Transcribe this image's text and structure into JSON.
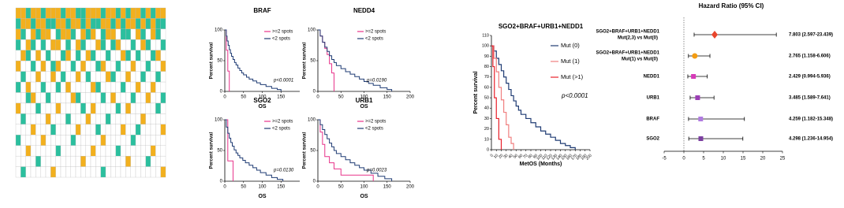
{
  "chart_data": [
    {
      "type": "heatmap",
      "colors": [
        "#ffffff",
        "#2bbf9e",
        "#f2b01e"
      ],
      "values": [
        [
          2,
          2,
          1,
          2,
          2,
          1,
          2,
          2,
          2,
          1,
          2,
          2,
          1,
          1,
          2,
          2,
          2,
          1,
          2,
          2,
          1,
          2,
          1,
          2,
          2,
          1,
          2,
          1,
          2,
          2
        ],
        [
          1,
          2,
          2,
          1,
          2,
          2,
          1,
          1,
          2,
          2,
          1,
          2,
          2,
          1,
          2,
          1,
          1,
          2,
          2,
          1,
          2,
          1,
          2,
          2,
          1,
          2,
          1,
          2,
          1,
          1
        ],
        [
          2,
          1,
          0,
          2,
          1,
          2,
          2,
          0,
          1,
          2,
          2,
          1,
          0,
          2,
          1,
          2,
          0,
          1,
          2,
          2,
          0,
          1,
          1,
          0,
          2,
          1,
          0,
          2,
          1,
          0
        ],
        [
          1,
          0,
          2,
          1,
          0,
          1,
          0,
          2,
          2,
          0,
          1,
          0,
          2,
          1,
          0,
          0,
          2,
          1,
          0,
          1,
          2,
          0,
          0,
          1,
          0,
          2,
          1,
          0,
          0,
          1
        ],
        [
          0,
          2,
          1,
          0,
          2,
          0,
          1,
          0,
          0,
          1,
          2,
          0,
          1,
          0,
          2,
          1,
          0,
          0,
          1,
          0,
          0,
          2,
          1,
          0,
          1,
          0,
          0,
          1,
          2,
          0
        ],
        [
          2,
          0,
          0,
          1,
          0,
          2,
          0,
          1,
          2,
          0,
          0,
          1,
          0,
          2,
          0,
          0,
          1,
          2,
          0,
          0,
          1,
          0,
          0,
          2,
          0,
          0,
          1,
          0,
          0,
          2
        ],
        [
          0,
          1,
          0,
          0,
          2,
          0,
          0,
          2,
          0,
          1,
          0,
          0,
          2,
          0,
          1,
          0,
          0,
          0,
          2,
          1,
          0,
          0,
          2,
          0,
          0,
          1,
          0,
          0,
          1,
          0
        ],
        [
          1,
          0,
          2,
          0,
          0,
          1,
          0,
          0,
          1,
          0,
          2,
          0,
          0,
          0,
          0,
          2,
          1,
          0,
          0,
          0,
          0,
          1,
          0,
          0,
          2,
          0,
          0,
          2,
          0,
          0
        ],
        [
          0,
          0,
          1,
          2,
          0,
          0,
          1,
          0,
          0,
          0,
          0,
          2,
          1,
          0,
          0,
          0,
          0,
          1,
          0,
          2,
          0,
          0,
          0,
          1,
          0,
          0,
          2,
          0,
          0,
          1
        ],
        [
          2,
          0,
          0,
          0,
          1,
          0,
          0,
          0,
          2,
          0,
          0,
          0,
          0,
          1,
          0,
          2,
          0,
          0,
          0,
          0,
          1,
          0,
          2,
          0,
          0,
          0,
          0,
          0,
          1,
          0
        ],
        [
          0,
          1,
          0,
          0,
          0,
          0,
          2,
          0,
          0,
          0,
          1,
          0,
          0,
          0,
          2,
          0,
          0,
          0,
          1,
          0,
          0,
          0,
          0,
          0,
          0,
          2,
          0,
          0,
          0,
          0
        ],
        [
          0,
          0,
          0,
          2,
          0,
          0,
          0,
          1,
          0,
          0,
          0,
          0,
          2,
          0,
          0,
          0,
          1,
          0,
          0,
          0,
          0,
          2,
          0,
          0,
          1,
          0,
          0,
          0,
          0,
          2
        ],
        [
          1,
          0,
          0,
          0,
          0,
          2,
          0,
          0,
          0,
          0,
          0,
          1,
          0,
          0,
          0,
          0,
          0,
          2,
          0,
          0,
          0,
          0,
          0,
          1,
          0,
          0,
          0,
          0,
          0,
          0
        ],
        [
          0,
          0,
          2,
          0,
          0,
          0,
          0,
          0,
          1,
          0,
          0,
          0,
          0,
          0,
          0,
          2,
          0,
          0,
          0,
          0,
          1,
          0,
          0,
          0,
          0,
          0,
          0,
          2,
          0,
          0
        ],
        [
          0,
          0,
          0,
          0,
          1,
          0,
          0,
          0,
          0,
          0,
          0,
          0,
          0,
          2,
          0,
          0,
          0,
          0,
          0,
          0,
          0,
          0,
          2,
          0,
          0,
          0,
          1,
          0,
          0,
          0
        ],
        [
          0,
          1,
          0,
          0,
          0,
          0,
          0,
          2,
          0,
          0,
          0,
          0,
          0,
          0,
          0,
          0,
          0,
          1,
          0,
          0,
          0,
          0,
          0,
          0,
          0,
          0,
          0,
          0,
          0,
          2
        ]
      ]
    },
    {
      "type": "km",
      "title": "BRAF",
      "xlabel": "OS",
      "ylabel": "Percent survival",
      "annotation": "p<0.0001",
      "legend": "upper right",
      "xlim": [
        0,
        200
      ],
      "xticks": [
        0,
        50,
        100,
        150
      ],
      "ylim": [
        0,
        100
      ],
      "yticks": [
        0,
        50,
        100
      ],
      "series": [
        {
          "name": ">=2 spots",
          "color": "#e8338a",
          "x": [
            0,
            4,
            8,
            12
          ],
          "y": [
            100,
            67,
            33,
            0
          ]
        },
        {
          "name": "<2 spots",
          "color": "#1f3b73",
          "x": [
            0,
            4,
            6,
            9,
            12,
            15,
            18,
            22,
            26,
            30,
            35,
            40,
            45,
            50,
            58,
            65,
            75,
            85,
            95,
            110,
            125,
            140,
            150
          ],
          "y": [
            100,
            90,
            82,
            75,
            68,
            62,
            57,
            52,
            47,
            43,
            38,
            34,
            30,
            27,
            23,
            20,
            17,
            14,
            11,
            8,
            5,
            3,
            0
          ]
        }
      ]
    },
    {
      "type": "km",
      "title": "NEDD4",
      "xlabel": "OS",
      "ylabel": "Percent survival",
      "annotation": "p=0.0190",
      "legend": "upper right",
      "xlim": [
        0,
        200
      ],
      "xticks": [
        0,
        50,
        100,
        150,
        200
      ],
      "ylim": [
        0,
        100
      ],
      "yticks": [
        0,
        50,
        100
      ],
      "series": [
        {
          "name": ">=2 spots",
          "color": "#e8338a",
          "x": [
            0,
            5,
            10,
            15,
            20,
            25,
            30,
            35
          ],
          "y": [
            100,
            90,
            80,
            70,
            60,
            45,
            30,
            0
          ]
        },
        {
          "name": "<2 spots",
          "color": "#1f3b73",
          "x": [
            0,
            5,
            10,
            15,
            20,
            25,
            30,
            35,
            40,
            50,
            60,
            70,
            80,
            90,
            100,
            110,
            120,
            135,
            150,
            160
          ],
          "y": [
            100,
            90,
            80,
            72,
            65,
            58,
            52,
            47,
            42,
            37,
            32,
            28,
            24,
            20,
            16,
            13,
            10,
            6,
            3,
            0
          ]
        }
      ]
    },
    {
      "type": "km",
      "title": "SGO2",
      "xlabel": "OS",
      "ylabel": "Percent survival",
      "annotation": "p=0.0130",
      "legend": "upper right",
      "xlim": [
        0,
        200
      ],
      "xticks": [
        0,
        50,
        100,
        150
      ],
      "ylim": [
        0,
        100
      ],
      "yticks": [
        0,
        50,
        100
      ],
      "series": [
        {
          "name": ">=2 spots",
          "color": "#e8338a",
          "x": [
            0,
            8,
            22
          ],
          "y": [
            100,
            33,
            0
          ]
        },
        {
          "name": "<2 spots",
          "color": "#1f3b73",
          "x": [
            0,
            4,
            8,
            12,
            16,
            20,
            25,
            30,
            35,
            40,
            48,
            55,
            65,
            75,
            85,
            95,
            110,
            125,
            140,
            155
          ],
          "y": [
            100,
            88,
            78,
            70,
            63,
            57,
            51,
            46,
            42,
            38,
            34,
            30,
            26,
            22,
            18,
            14,
            10,
            6,
            3,
            0
          ]
        }
      ]
    },
    {
      "type": "km",
      "title": "URB1",
      "xlabel": "OS",
      "ylabel": "Percent survival",
      "annotation": "p=0.0023",
      "legend": "upper right",
      "xlim": [
        0,
        200
      ],
      "xticks": [
        0,
        50,
        100,
        150,
        200
      ],
      "ylim": [
        0,
        100
      ],
      "yticks": [
        0,
        50,
        100
      ],
      "series": [
        {
          "name": ">=2 spots",
          "color": "#e8338a",
          "x": [
            0,
            5,
            10,
            15,
            25,
            35,
            50,
            70,
            120
          ],
          "y": [
            100,
            80,
            60,
            40,
            30,
            20,
            10,
            10,
            0
          ]
        },
        {
          "name": "<2 spots",
          "color": "#1f3b73",
          "x": [
            0,
            5,
            10,
            15,
            20,
            25,
            30,
            35,
            40,
            50,
            60,
            70,
            80,
            90,
            100,
            115,
            130,
            145,
            160
          ],
          "y": [
            100,
            92,
            84,
            76,
            69,
            62,
            56,
            50,
            45,
            40,
            35,
            30,
            26,
            22,
            18,
            13,
            8,
            4,
            0
          ]
        }
      ]
    },
    {
      "type": "km",
      "title": "SGO2+BRAF+URB1+NEDD1",
      "xlabel": "MetOS (Months)",
      "ylabel": "Percent survival",
      "annotation": "p<0.0001",
      "legend": "right",
      "xlim": [
        0,
        200
      ],
      "xticks": [
        0,
        10,
        20,
        30,
        40,
        50,
        60,
        70,
        80,
        90,
        100,
        110,
        120,
        130,
        140,
        150,
        160,
        170,
        180,
        190,
        200
      ],
      "ylim": [
        0,
        110
      ],
      "yticks": [
        0,
        10,
        20,
        30,
        40,
        50,
        60,
        70,
        80,
        90,
        100,
        110
      ],
      "series": [
        {
          "name": "Mut (0)",
          "color": "#1f3b73",
          "x": [
            0,
            5,
            10,
            15,
            20,
            25,
            30,
            35,
            40,
            45,
            50,
            55,
            60,
            70,
            80,
            90,
            100,
            110,
            120,
            130,
            140,
            150,
            160,
            170
          ],
          "y": [
            100,
            95,
            88,
            82,
            76,
            70,
            64,
            58,
            52,
            47,
            42,
            38,
            34,
            30,
            26,
            22,
            18,
            15,
            12,
            9,
            6,
            4,
            2,
            0
          ]
        },
        {
          "name": "Mut (1)",
          "color": "#f07f7f",
          "x": [
            0,
            5,
            10,
            15,
            20,
            25,
            30,
            35,
            40,
            45
          ],
          "y": [
            100,
            88,
            75,
            60,
            48,
            36,
            24,
            12,
            6,
            0
          ]
        },
        {
          "name": "Mut (>1)",
          "color": "#e8202a",
          "x": [
            0,
            3,
            6,
            10,
            15,
            20
          ],
          "y": [
            100,
            80,
            50,
            30,
            10,
            0
          ]
        }
      ]
    },
    {
      "type": "forest",
      "title": "Hazard Ratio (95% CI)",
      "categories": [
        "SGO2+BRAF+URB1+NEDD1",
        "SGO2+BRAF+URB1+NEDD1",
        "NEDD1",
        "URB1",
        "BRAF",
        "SGO2"
      ],
      "sublabels": [
        "Mut(2,3) vs Mut(0)",
        "Mut(1) vs Mut(0)",
        null,
        null,
        null,
        null
      ],
      "values": [
        7.803,
        2.765,
        2.429,
        3.485,
        4.259,
        4.298
      ],
      "lower": [
        2.597,
        1.158,
        0.994,
        1.589,
        1.182,
        1.236
      ],
      "upper": [
        23.439,
        6.606,
        5.936,
        7.641,
        15.348,
        14.954
      ],
      "value_labels": [
        "7.803 (2.597-23.439)",
        "2.765 (1.158-6.606)",
        "2.429 (0.994-5.936)",
        "3.485 (1.589-7.641)",
        "4.259 (1.182-15.348)",
        "4.298 (1.236-14.954)"
      ],
      "colors": [
        "#e8452c",
        "#f39c12",
        "#d63ab8",
        "#9b3fb5",
        "#b07be0",
        "#7b3fa0"
      ],
      "markers": [
        "diamond",
        "circle",
        "square",
        "square",
        "square",
        "square"
      ],
      "xlim": [
        -5,
        25
      ],
      "xticks": [
        -5,
        0,
        5,
        10,
        15,
        20,
        25
      ]
    }
  ]
}
